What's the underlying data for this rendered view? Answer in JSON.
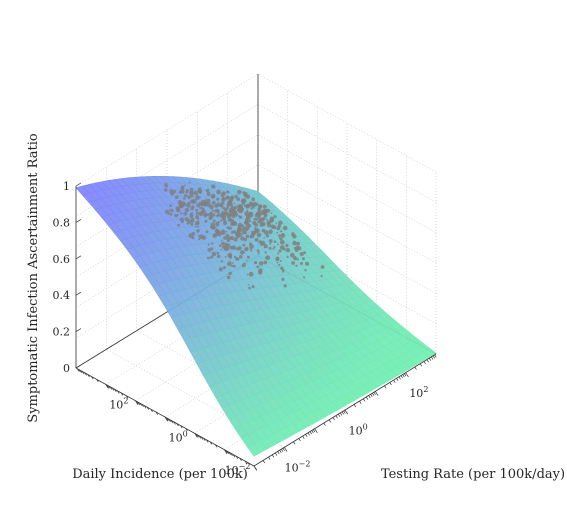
{
  "chart_data": {
    "type": "surface3d",
    "title": "",
    "xlabel": "Daily Incidence (per 100k)",
    "ylabel": "Testing Rate (per 100k/day)",
    "zlabel": "Symptomatic Infection Ascertainment Ratio",
    "x_scale": "log",
    "y_scale": "log",
    "xlim": [
      0.001,
      1000
    ],
    "ylim": [
      0.001,
      1000
    ],
    "zlim": [
      0,
      1
    ],
    "x_ticks": [
      {
        "value": 0.01,
        "label": "10^{-2}",
        "base": "10",
        "exp": "−2"
      },
      {
        "value": 1,
        "label": "10^{0}",
        "base": "10",
        "exp": "0"
      },
      {
        "value": 100,
        "label": "10^{2}",
        "base": "10",
        "exp": "2"
      }
    ],
    "y_ticks": [
      {
        "value": 0.01,
        "label": "10^{-2}",
        "base": "10",
        "exp": "−2"
      },
      {
        "value": 1,
        "label": "10^{0}",
        "base": "10",
        "exp": "0"
      },
      {
        "value": 100,
        "label": "10^{2}",
        "base": "10",
        "exp": "2"
      }
    ],
    "z_ticks": [
      {
        "value": 0,
        "label": "0"
      },
      {
        "value": 0.2,
        "label": "0.2"
      },
      {
        "value": 0.4,
        "label": "0.4"
      },
      {
        "value": 0.6,
        "label": "0.6"
      },
      {
        "value": 0.8,
        "label": "0.8"
      },
      {
        "value": 1,
        "label": "1"
      }
    ],
    "grid": true,
    "colormap": {
      "low": "#70f0b0",
      "high": "#7f7fff"
    },
    "marker_color": "#808080",
    "surface_corners": [
      {
        "x": 0.001,
        "y": 0.001,
        "z": 0.0
      },
      {
        "x": 0.001,
        "y": 1000,
        "z": 0.0
      },
      {
        "x": 1000,
        "y": 0.001,
        "z": 1.0
      },
      {
        "x": 1000,
        "y": 1000,
        "z": 0.36
      }
    ]
  }
}
